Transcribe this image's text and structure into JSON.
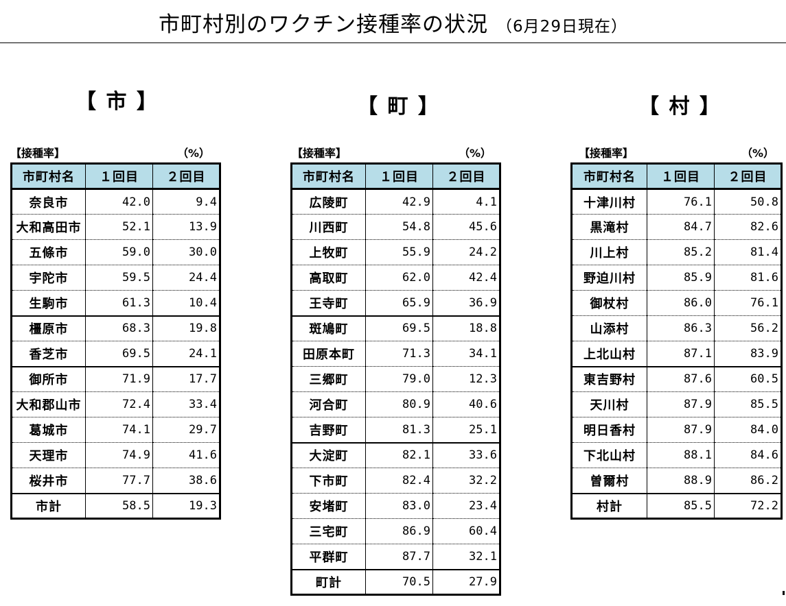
{
  "title": "市町村別のワクチン接種率の状況",
  "date_note": "（6月29日現在）",
  "caption": "【接種率】",
  "unit": "（%）",
  "columns": {
    "name": "市町村名",
    "first": "１回目",
    "second": "２回目"
  },
  "cities": {
    "heading": "【 市 】",
    "rows": [
      {
        "name": "奈良市",
        "first": "42.0",
        "second": "9.4"
      },
      {
        "name": "大和高田市",
        "first": "52.1",
        "second": "13.9"
      },
      {
        "name": "五條市",
        "first": "59.0",
        "second": "30.0"
      },
      {
        "name": "宇陀市",
        "first": "59.5",
        "second": "24.4"
      },
      {
        "name": "生駒市",
        "first": "61.3",
        "second": "10.4"
      },
      {
        "name": "橿原市",
        "first": "68.3",
        "second": "19.8"
      },
      {
        "name": "香芝市",
        "first": "69.5",
        "second": "24.1"
      },
      {
        "name": "御所市",
        "first": "71.9",
        "second": "17.7"
      },
      {
        "name": "大和郡山市",
        "first": "72.4",
        "second": "33.4"
      },
      {
        "name": "葛城市",
        "first": "74.1",
        "second": "29.7"
      },
      {
        "name": "天理市",
        "first": "74.9",
        "second": "41.6"
      },
      {
        "name": "桜井市",
        "first": "77.7",
        "second": "38.6"
      }
    ],
    "total": {
      "name": "市計",
      "first": "58.5",
      "second": "19.3"
    }
  },
  "towns": {
    "heading": "【 町 】",
    "rows": [
      {
        "name": "広陵町",
        "first": "42.9",
        "second": "4.1"
      },
      {
        "name": "川西町",
        "first": "54.8",
        "second": "45.6"
      },
      {
        "name": "上牧町",
        "first": "55.9",
        "second": "24.2"
      },
      {
        "name": "高取町",
        "first": "62.0",
        "second": "42.4"
      },
      {
        "name": "王寺町",
        "first": "65.9",
        "second": "36.9"
      },
      {
        "name": "斑鳩町",
        "first": "69.5",
        "second": "18.8"
      },
      {
        "name": "田原本町",
        "first": "71.3",
        "second": "34.1"
      },
      {
        "name": "三郷町",
        "first": "79.0",
        "second": "12.3"
      },
      {
        "name": "河合町",
        "first": "80.9",
        "second": "40.6"
      },
      {
        "name": "吉野町",
        "first": "81.3",
        "second": "25.1"
      },
      {
        "name": "大淀町",
        "first": "82.1",
        "second": "33.6"
      },
      {
        "name": "下市町",
        "first": "82.4",
        "second": "32.2"
      },
      {
        "name": "安堵町",
        "first": "83.0",
        "second": "23.4"
      },
      {
        "name": "三宅町",
        "first": "86.9",
        "second": "60.4"
      },
      {
        "name": "平群町",
        "first": "87.7",
        "second": "32.1"
      }
    ],
    "total": {
      "name": "町計",
      "first": "70.5",
      "second": "27.9"
    }
  },
  "villages": {
    "heading": "【 村 】",
    "rows": [
      {
        "name": "十津川村",
        "first": "76.1",
        "second": "50.8"
      },
      {
        "name": "黒滝村",
        "first": "84.7",
        "second": "82.6"
      },
      {
        "name": "川上村",
        "first": "85.2",
        "second": "81.4"
      },
      {
        "name": "野迫川村",
        "first": "85.9",
        "second": "81.6"
      },
      {
        "name": "御杖村",
        "first": "86.0",
        "second": "76.1"
      },
      {
        "name": "山添村",
        "first": "86.3",
        "second": "56.2"
      },
      {
        "name": "上北山村",
        "first": "87.1",
        "second": "83.9"
      },
      {
        "name": "東吉野村",
        "first": "87.6",
        "second": "60.5"
      },
      {
        "name": "天川村",
        "first": "87.9",
        "second": "85.5"
      },
      {
        "name": "明日香村",
        "first": "87.9",
        "second": "84.0"
      },
      {
        "name": "下北山村",
        "first": "88.1",
        "second": "84.6"
      },
      {
        "name": "曽爾村",
        "first": "88.9",
        "second": "86.2"
      }
    ],
    "total": {
      "name": "村計",
      "first": "85.5",
      "second": "72.2"
    }
  }
}
